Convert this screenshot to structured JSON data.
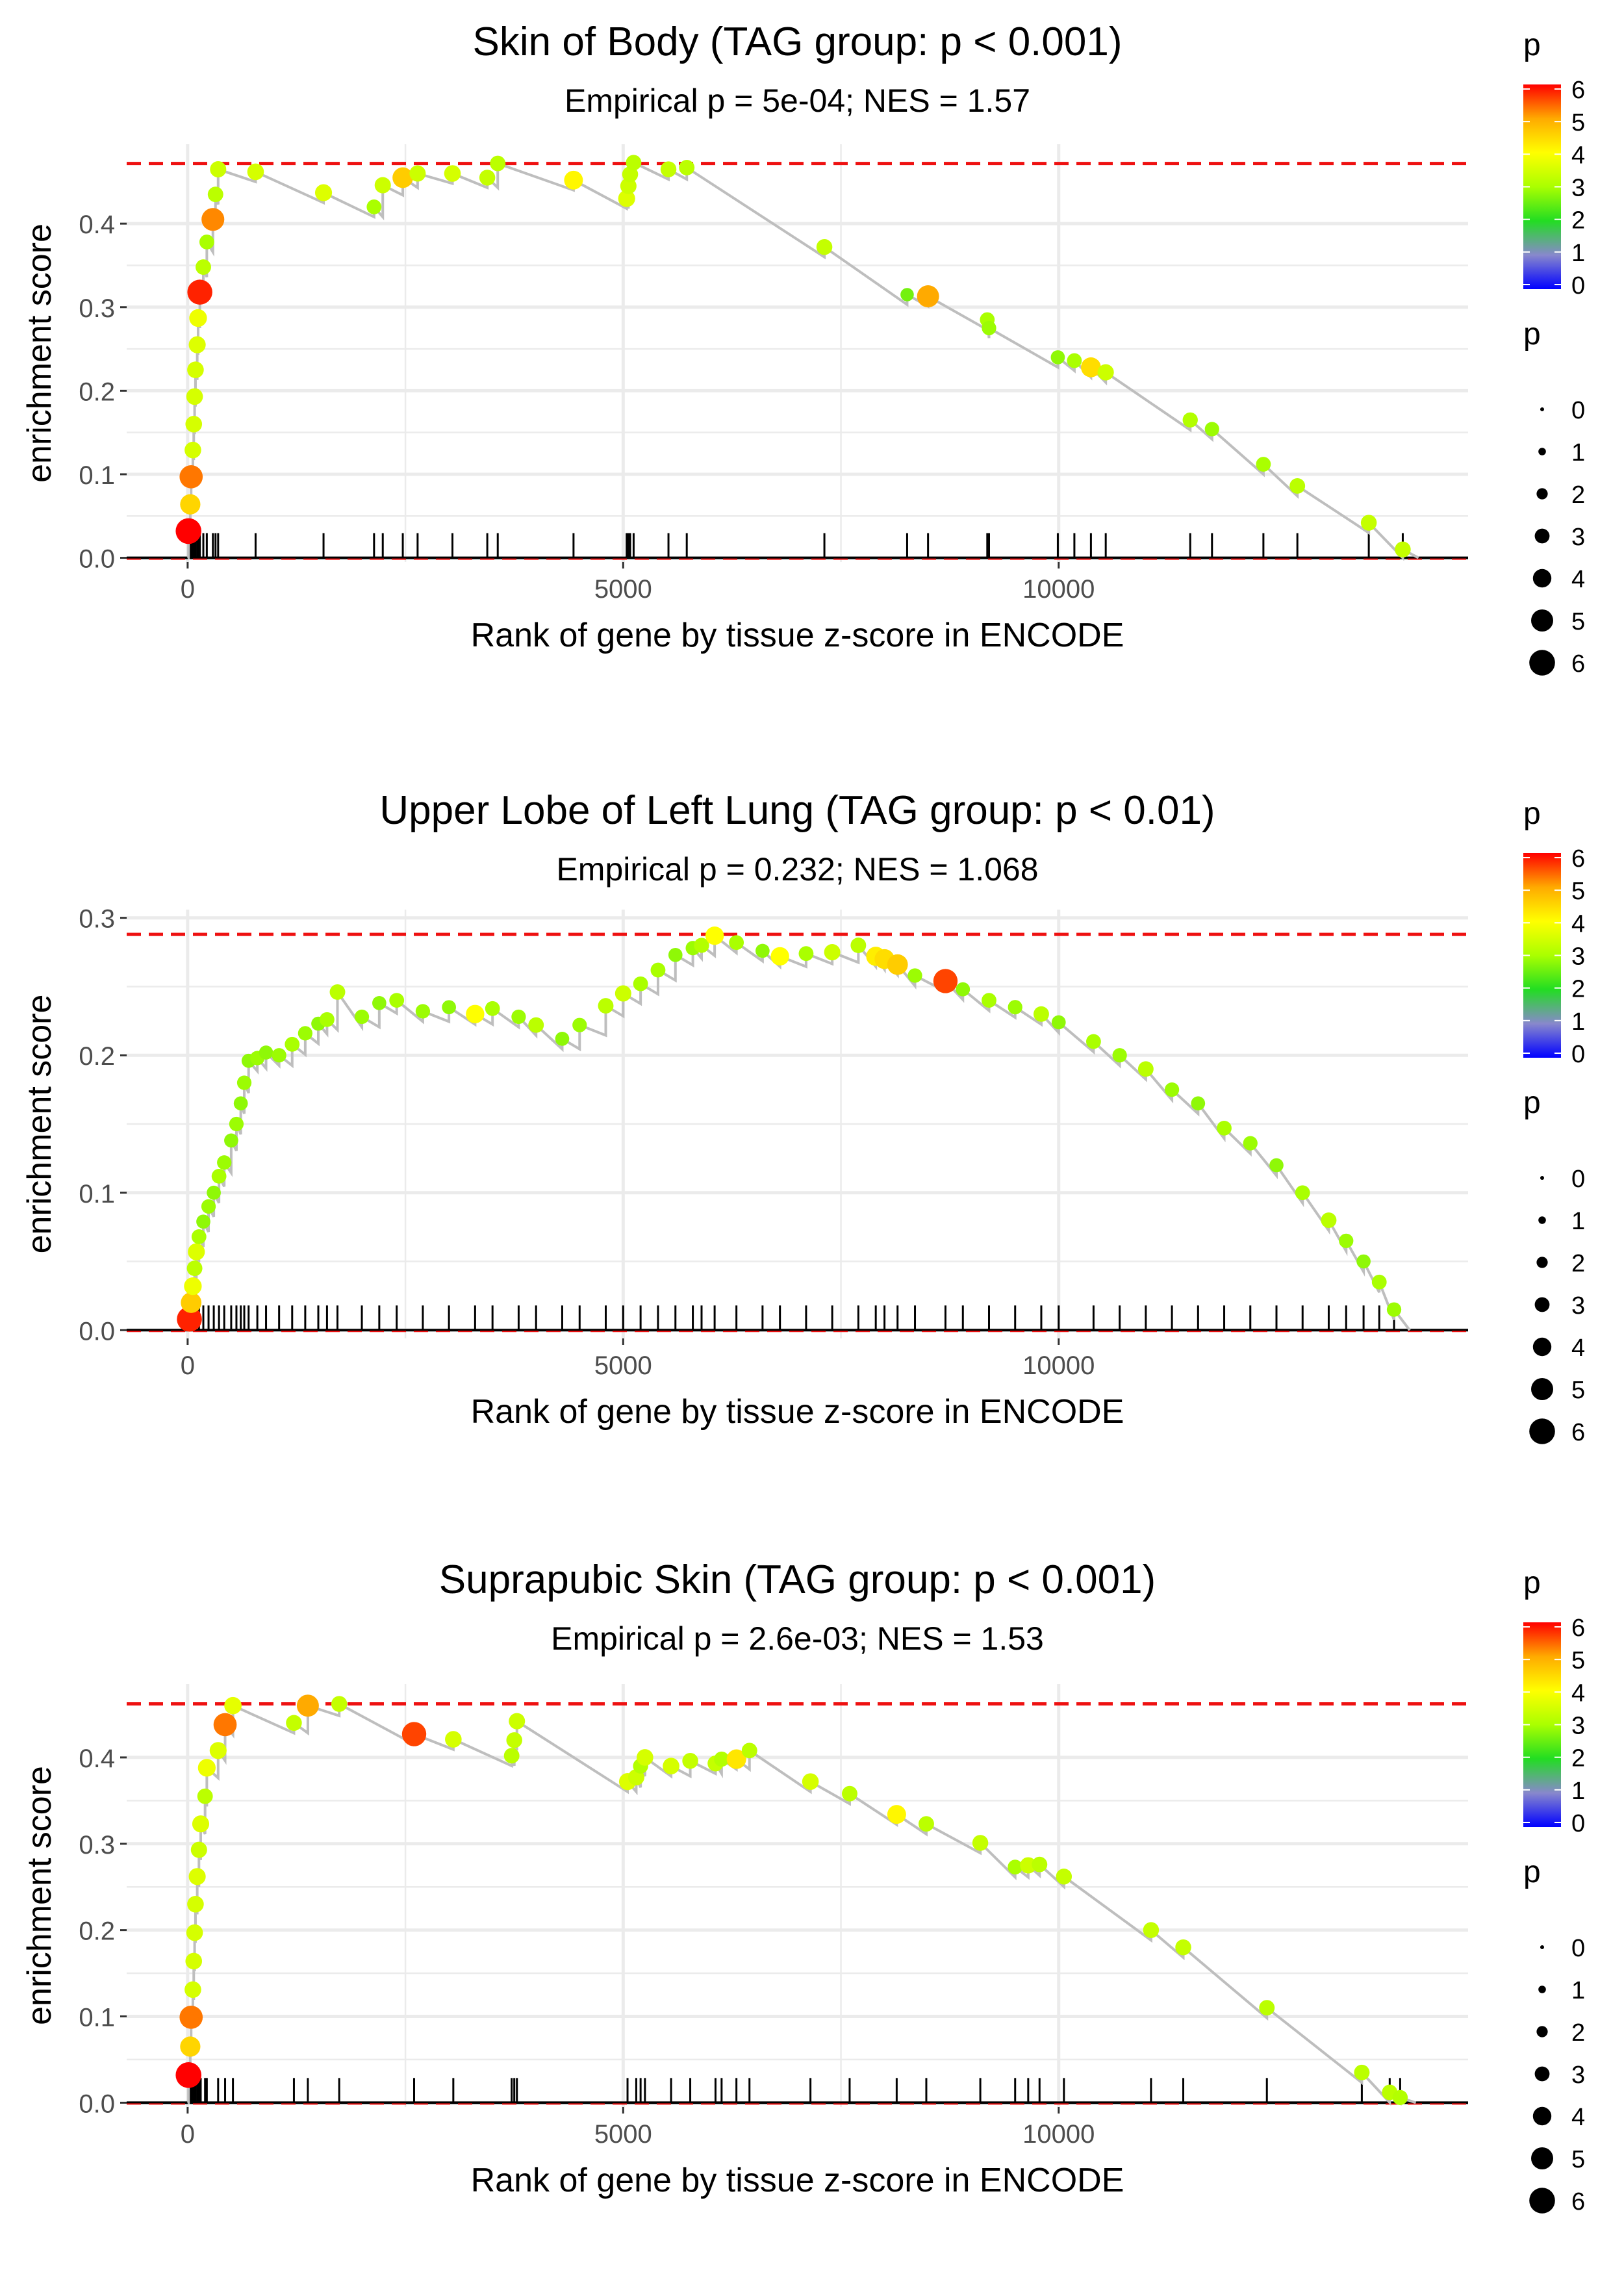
{
  "colors": {
    "curve": "#bebebe",
    "max_line": "#ee1111",
    "grid": "#ebebeb",
    "rug": "#000000",
    "gradient": [
      "#0000ff",
      "#8888cc",
      "#22dd22",
      "#aaff00",
      "#ffff00",
      "#ffaa00",
      "#ff0000"
    ]
  },
  "legends": {
    "color_title": "p",
    "color_ticks": [
      "0",
      "1",
      "2",
      "3",
      "4",
      "5",
      "6"
    ],
    "size_title": "p",
    "size_labels": [
      "0",
      "1",
      "2",
      "3",
      "4",
      "5",
      "6"
    ]
  },
  "chart_data": [
    {
      "type": "scatter",
      "title": "Skin of Body (TAG group: p < 0.001)",
      "subtitle": "Empirical p = 5e-04; NES = 1.57",
      "xlabel": "Rank of gene by tissue z-score in ENCODE",
      "ylabel": "enrichment score",
      "x_ticks": [
        0,
        5000,
        10000
      ],
      "x_tick_labels": [
        "0",
        "5000",
        "10000"
      ],
      "y_ticks": [
        0,
        0.1,
        0.2,
        0.3,
        0.4
      ],
      "y_tick_labels": [
        "0.0",
        "0.1",
        "0.2",
        "0.3",
        "0.4"
      ],
      "xlim": [
        -700,
        14700
      ],
      "ylim": [
        -0.005,
        0.495
      ],
      "max_es": 0.472,
      "points": [
        [
          10,
          0.032,
          6.0
        ],
        [
          30,
          0.064,
          4.5
        ],
        [
          40,
          0.097,
          5.3
        ],
        [
          60,
          0.129,
          3.5
        ],
        [
          70,
          0.16,
          3.5
        ],
        [
          80,
          0.193,
          3.5
        ],
        [
          90,
          0.225,
          3.5
        ],
        [
          110,
          0.255,
          3.6
        ],
        [
          120,
          0.287,
          3.8
        ],
        [
          140,
          0.318,
          5.8
        ],
        [
          180,
          0.348,
          3.2
        ],
        [
          220,
          0.378,
          3.0
        ],
        [
          290,
          0.405,
          5.2
        ],
        [
          320,
          0.435,
          3.2
        ],
        [
          350,
          0.465,
          3.4
        ],
        [
          780,
          0.462,
          3.5
        ],
        [
          1560,
          0.437,
          3.6
        ],
        [
          2140,
          0.42,
          3.0
        ],
        [
          2240,
          0.446,
          3.4
        ],
        [
          2470,
          0.455,
          4.6
        ],
        [
          2640,
          0.46,
          3.4
        ],
        [
          3040,
          0.46,
          3.5
        ],
        [
          3440,
          0.455,
          3.3
        ],
        [
          3560,
          0.472,
          3.2
        ],
        [
          4430,
          0.452,
          4.1
        ],
        [
          5040,
          0.43,
          3.6
        ],
        [
          5060,
          0.445,
          3.4
        ],
        [
          5080,
          0.459,
          3.3
        ],
        [
          5120,
          0.473,
          3.2
        ],
        [
          5520,
          0.465,
          3.3
        ],
        [
          5730,
          0.467,
          3.2
        ],
        [
          7310,
          0.372,
          3.3
        ],
        [
          8260,
          0.315,
          2.6
        ],
        [
          8500,
          0.313,
          5.0
        ],
        [
          9180,
          0.285,
          3.0
        ],
        [
          9200,
          0.275,
          2.9
        ],
        [
          9990,
          0.24,
          2.8
        ],
        [
          10180,
          0.236,
          3.0
        ],
        [
          10370,
          0.228,
          4.4
        ],
        [
          10540,
          0.222,
          3.4
        ],
        [
          11510,
          0.165,
          3.1
        ],
        [
          11760,
          0.154,
          2.9
        ],
        [
          12350,
          0.112,
          3.0
        ],
        [
          12740,
          0.086,
          3.2
        ],
        [
          13560,
          0.042,
          3.3
        ],
        [
          13950,
          0.01,
          3.3
        ]
      ]
    },
    {
      "type": "scatter",
      "title": "Upper Lobe of Left Lung (TAG group: p < 0.01)",
      "subtitle": "Empirical p = 0.232; NES = 1.068",
      "xlabel": "Rank of gene by tissue z-score in ENCODE",
      "ylabel": "enrichment score",
      "x_ticks": [
        0,
        5000,
        10000
      ],
      "x_tick_labels": [
        "0",
        "5000",
        "10000"
      ],
      "y_ticks": [
        0,
        0.1,
        0.2,
        0.3
      ],
      "y_tick_labels": [
        "0.0",
        "0.1",
        "0.2",
        "0.3"
      ],
      "xlim": [
        -700,
        14700
      ],
      "ylim": [
        -0.006,
        0.306
      ],
      "max_es": 0.288,
      "points": [
        [
          20,
          0.008,
          5.8
        ],
        [
          40,
          0.02,
          4.6
        ],
        [
          60,
          0.032,
          3.8
        ],
        [
          80,
          0.045,
          3.2
        ],
        [
          100,
          0.057,
          3.6
        ],
        [
          130,
          0.068,
          3.0
        ],
        [
          180,
          0.079,
          2.8
        ],
        [
          240,
          0.09,
          2.9
        ],
        [
          300,
          0.1,
          2.8
        ],
        [
          360,
          0.112,
          3.0
        ],
        [
          420,
          0.122,
          2.9
        ],
        [
          500,
          0.138,
          2.8
        ],
        [
          560,
          0.15,
          2.9
        ],
        [
          610,
          0.165,
          2.8
        ],
        [
          650,
          0.18,
          2.9
        ],
        [
          700,
          0.196,
          2.8
        ],
        [
          800,
          0.198,
          2.9
        ],
        [
          900,
          0.202,
          2.8
        ],
        [
          1050,
          0.2,
          2.9
        ],
        [
          1200,
          0.208,
          3.0
        ],
        [
          1350,
          0.216,
          2.9
        ],
        [
          1500,
          0.223,
          2.8
        ],
        [
          1600,
          0.226,
          3.0
        ],
        [
          1720,
          0.246,
          3.2
        ],
        [
          2000,
          0.228,
          2.9
        ],
        [
          2200,
          0.238,
          2.8
        ],
        [
          2400,
          0.24,
          3.0
        ],
        [
          2700,
          0.232,
          2.9
        ],
        [
          3000,
          0.235,
          2.8
        ],
        [
          3300,
          0.23,
          4.0
        ],
        [
          3500,
          0.234,
          3.0
        ],
        [
          3800,
          0.228,
          2.9
        ],
        [
          4000,
          0.222,
          3.2
        ],
        [
          4300,
          0.212,
          2.8
        ],
        [
          4500,
          0.222,
          2.9
        ],
        [
          4800,
          0.236,
          3.2
        ],
        [
          5000,
          0.245,
          3.4
        ],
        [
          5200,
          0.252,
          3.0
        ],
        [
          5400,
          0.262,
          3.0
        ],
        [
          5600,
          0.273,
          2.8
        ],
        [
          5800,
          0.278,
          2.9
        ],
        [
          5900,
          0.28,
          3.1
        ],
        [
          6050,
          0.287,
          4.0
        ],
        [
          6300,
          0.282,
          3.0
        ],
        [
          6600,
          0.276,
          2.8
        ],
        [
          6800,
          0.272,
          4.0
        ],
        [
          7100,
          0.274,
          3.0
        ],
        [
          7400,
          0.275,
          3.4
        ],
        [
          7700,
          0.28,
          3.2
        ],
        [
          7900,
          0.272,
          4.2
        ],
        [
          8000,
          0.27,
          4.4
        ],
        [
          8150,
          0.266,
          4.6
        ],
        [
          8350,
          0.258,
          2.9
        ],
        [
          8700,
          0.254,
          5.6
        ],
        [
          8900,
          0.248,
          2.8
        ],
        [
          9200,
          0.24,
          3.0
        ],
        [
          9500,
          0.235,
          2.9
        ],
        [
          9800,
          0.23,
          3.2
        ],
        [
          10000,
          0.224,
          2.8
        ],
        [
          10400,
          0.21,
          3.0
        ],
        [
          10700,
          0.2,
          2.9
        ],
        [
          11000,
          0.19,
          3.2
        ],
        [
          11300,
          0.175,
          2.9
        ],
        [
          11600,
          0.165,
          2.8
        ],
        [
          11900,
          0.147,
          3.0
        ],
        [
          12200,
          0.136,
          2.9
        ],
        [
          12500,
          0.12,
          2.8
        ],
        [
          12800,
          0.1,
          3.0
        ],
        [
          13100,
          0.08,
          3.2
        ],
        [
          13300,
          0.065,
          2.9
        ],
        [
          13500,
          0.05,
          2.8
        ],
        [
          13680,
          0.035,
          3.0
        ],
        [
          13850,
          0.015,
          2.9
        ]
      ]
    },
    {
      "type": "scatter",
      "title": "Suprapubic Skin (TAG group: p < 0.001)",
      "subtitle": "Empirical p = 2.6e-03; NES = 1.53",
      "xlabel": "Rank of gene by tissue z-score in ENCODE",
      "ylabel": "enrichment score",
      "x_ticks": [
        0,
        5000,
        10000
      ],
      "x_tick_labels": [
        "0",
        "5000",
        "10000"
      ],
      "y_ticks": [
        0,
        0.1,
        0.2,
        0.3,
        0.4
      ],
      "y_tick_labels": [
        "0.0",
        "0.1",
        "0.2",
        "0.3",
        "0.4"
      ],
      "xlim": [
        -700,
        14700
      ],
      "ylim": [
        -0.005,
        0.485
      ],
      "max_es": 0.462,
      "points": [
        [
          10,
          0.032,
          6.0
        ],
        [
          30,
          0.065,
          4.5
        ],
        [
          40,
          0.099,
          5.3
        ],
        [
          60,
          0.131,
          3.5
        ],
        [
          70,
          0.164,
          3.5
        ],
        [
          80,
          0.197,
          3.5
        ],
        [
          90,
          0.23,
          3.5
        ],
        [
          110,
          0.262,
          3.6
        ],
        [
          130,
          0.293,
          3.4
        ],
        [
          150,
          0.323,
          3.6
        ],
        [
          200,
          0.355,
          3.2
        ],
        [
          220,
          0.388,
          3.8
        ],
        [
          350,
          0.408,
          3.6
        ],
        [
          430,
          0.438,
          5.3
        ],
        [
          520,
          0.46,
          3.7
        ],
        [
          1220,
          0.44,
          3.3
        ],
        [
          1380,
          0.46,
          5.0
        ],
        [
          1740,
          0.462,
          3.3
        ],
        [
          2600,
          0.427,
          5.6
        ],
        [
          3050,
          0.421,
          3.5
        ],
        [
          3720,
          0.402,
          3.2
        ],
        [
          3750,
          0.42,
          3.3
        ],
        [
          3780,
          0.442,
          3.4
        ],
        [
          5050,
          0.372,
          3.6
        ],
        [
          5150,
          0.377,
          3.4
        ],
        [
          5200,
          0.39,
          3.1
        ],
        [
          5250,
          0.4,
          3.5
        ],
        [
          5550,
          0.39,
          3.5
        ],
        [
          5770,
          0.396,
          3.3
        ],
        [
          6060,
          0.393,
          3.3
        ],
        [
          6130,
          0.398,
          3.1
        ],
        [
          6300,
          0.398,
          4.3
        ],
        [
          6450,
          0.408,
          3.2
        ],
        [
          7150,
          0.372,
          3.5
        ],
        [
          7600,
          0.358,
          3.2
        ],
        [
          8140,
          0.334,
          4.1
        ],
        [
          8480,
          0.323,
          3.2
        ],
        [
          9100,
          0.301,
          3.3
        ],
        [
          9500,
          0.273,
          3.0
        ],
        [
          9650,
          0.275,
          3.4
        ],
        [
          9780,
          0.276,
          3.2
        ],
        [
          10060,
          0.262,
          3.3
        ],
        [
          11060,
          0.2,
          3.3
        ],
        [
          11430,
          0.18,
          3.3
        ],
        [
          12390,
          0.11,
          3.2
        ],
        [
          13480,
          0.035,
          3.2
        ],
        [
          13800,
          0.012,
          3.2
        ],
        [
          13920,
          0.006,
          3.1
        ]
      ]
    }
  ]
}
